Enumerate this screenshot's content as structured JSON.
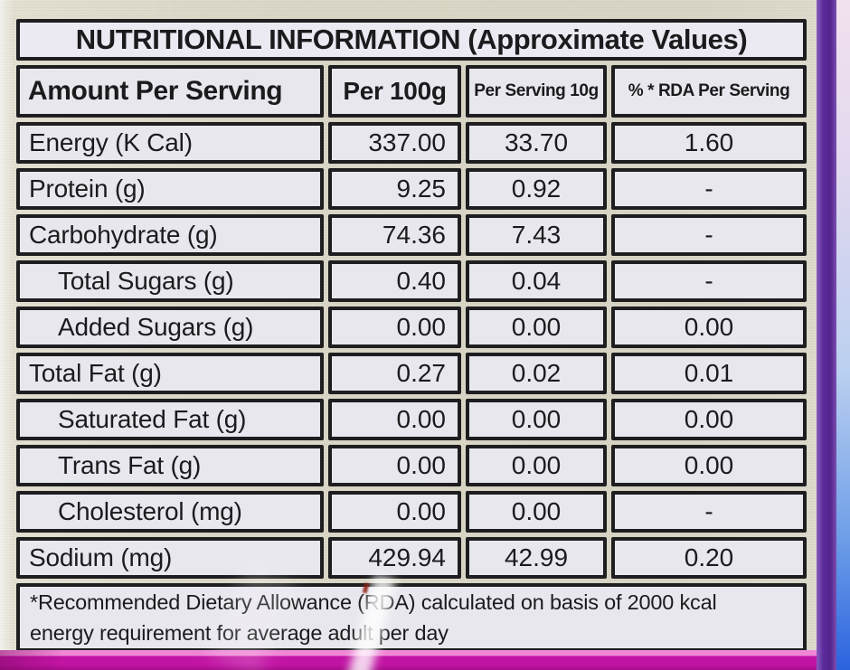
{
  "table": {
    "title": "NUTRITIONAL INFORMATION (Approximate Values)",
    "columns": [
      "Amount Per Serving",
      "Per 100g",
      "Per Serving 10g",
      "% * RDA Per Serving"
    ],
    "rows": [
      {
        "label": "Energy (K Cal)",
        "indent": false,
        "per100g": "337.00",
        "perServing10g": "33.70",
        "rdaPerServing": "1.60"
      },
      {
        "label": "Protein (g)",
        "indent": false,
        "per100g": "9.25",
        "perServing10g": "0.92",
        "rdaPerServing": "-"
      },
      {
        "label": "Carbohydrate (g)",
        "indent": false,
        "per100g": "74.36",
        "perServing10g": "7.43",
        "rdaPerServing": "-"
      },
      {
        "label": "Total Sugars (g)",
        "indent": true,
        "per100g": "0.40",
        "perServing10g": "0.04",
        "rdaPerServing": "-"
      },
      {
        "label": "Added Sugars (g)",
        "indent": true,
        "per100g": "0.00",
        "perServing10g": "0.00",
        "rdaPerServing": "0.00"
      },
      {
        "label": "Total Fat (g)",
        "indent": false,
        "per100g": "0.27",
        "perServing10g": "0.02",
        "rdaPerServing": "0.01"
      },
      {
        "label": "Saturated Fat (g)",
        "indent": true,
        "per100g": "0.00",
        "perServing10g": "0.00",
        "rdaPerServing": "0.00"
      },
      {
        "label": "Trans Fat (g)",
        "indent": true,
        "per100g": "0.00",
        "perServing10g": "0.00",
        "rdaPerServing": "0.00"
      },
      {
        "label": "Cholesterol (mg)",
        "indent": true,
        "per100g": "0.00",
        "perServing10g": "0.00",
        "rdaPerServing": "-"
      },
      {
        "label": "Sodium (mg)",
        "indent": false,
        "per100g": "429.94",
        "perServing10g": "42.99",
        "rdaPerServing": "0.20"
      }
    ],
    "footnote_line1": "*Recommended Dietary Allowance (RDA) calculated on basis of 2000 kcal",
    "footnote_line2": "energy requirement for average adult per day"
  },
  "colors": {
    "label_cell_bg": "#e9e7ee",
    "table_border": "#1e1e20",
    "text": "#1b1b1d",
    "package_cream_bg": "#dbd7c7",
    "edge_purple_stripe": "#5a2a9a",
    "edge_gradient_top_pink": "#f2e1ee",
    "edge_gradient_bottom_blue": "#2b63df",
    "bottom_stripe_magenta": "#c214a4",
    "bottom_stripe_pink_edge": "#ef86d6"
  }
}
